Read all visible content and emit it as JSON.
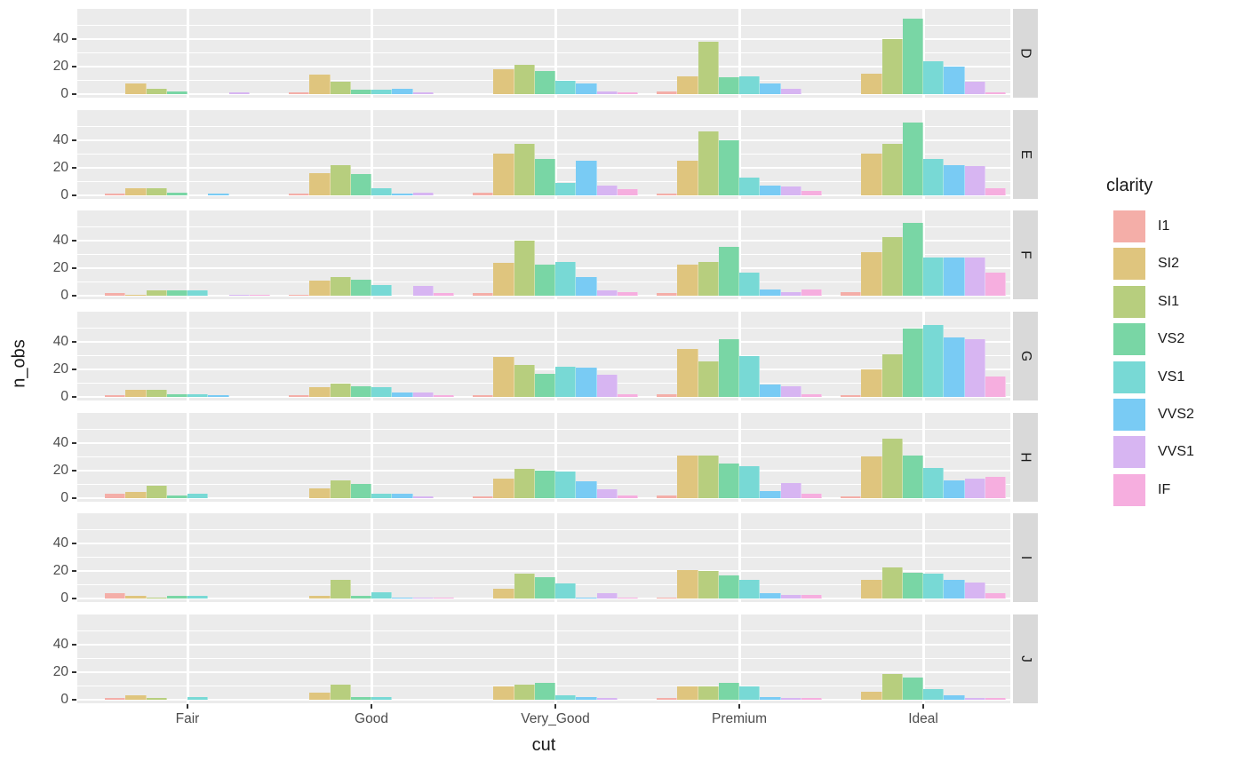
{
  "chart_data": {
    "type": "bar",
    "subtype": "dodged-faceted",
    "title": "",
    "xlabel": "cut",
    "ylabel": "n_obs",
    "facet_variable_values": [
      "D",
      "E",
      "F",
      "G",
      "H",
      "I",
      "J"
    ],
    "categories": [
      "Fair",
      "Good",
      "Very_Good",
      "Premium",
      "Ideal"
    ],
    "y_tick_labels": [
      "0",
      "20",
      "40"
    ],
    "y_major_ticks": [
      0,
      20,
      40
    ],
    "y_minor_ticks": [
      10,
      30,
      50
    ],
    "ylim": [
      0,
      62
    ],
    "grid": "on",
    "legend": {
      "title": "clarity",
      "position": "right",
      "entries": [
        {
          "label": "I1",
          "color": "#F4AEA8"
        },
        {
          "label": "SI2",
          "color": "#DFC57E"
        },
        {
          "label": "SI1",
          "color": "#B7CE7E"
        },
        {
          "label": "VS2",
          "color": "#79D6A5"
        },
        {
          "label": "VS1",
          "color": "#78D9D5"
        },
        {
          "label": "VVS2",
          "color": "#79CBF4"
        },
        {
          "label": "VVS1",
          "color": "#D7B5F2"
        },
        {
          "label": "IF",
          "color": "#F6AEDF"
        }
      ]
    },
    "series_order": [
      "I1",
      "SI2",
      "SI1",
      "VS2",
      "VS1",
      "VVS2",
      "VVS1",
      "IF"
    ],
    "values": {
      "D": {
        "Fair": [
          0,
          8,
          4,
          2,
          0,
          0,
          1,
          0
        ],
        "Good": [
          1,
          14,
          9,
          3,
          3,
          4,
          1,
          0
        ],
        "Very_Good": [
          0,
          18,
          21,
          17,
          10,
          8,
          2,
          1
        ],
        "Premium": [
          2,
          13,
          38,
          12,
          13,
          8,
          4,
          0
        ],
        "Ideal": [
          0,
          15,
          40,
          55,
          24,
          20,
          9,
          1
        ]
      },
      "E": {
        "Fair": [
          1,
          5,
          5,
          2,
          0,
          1,
          0,
          0
        ],
        "Good": [
          1,
          16,
          22,
          15,
          5,
          1,
          2,
          0
        ],
        "Very_Good": [
          2,
          30,
          37,
          26,
          9,
          25,
          7,
          4
        ],
        "Premium": [
          1,
          25,
          46,
          40,
          13,
          7,
          6,
          3
        ],
        "Ideal": [
          0,
          30,
          37,
          53,
          26,
          22,
          21,
          5
        ]
      },
      "F": {
        "Fair": [
          2,
          1,
          4,
          4,
          4,
          0,
          1,
          1
        ],
        "Good": [
          1,
          11,
          14,
          12,
          8,
          0,
          7,
          2
        ],
        "Very_Good": [
          2,
          24,
          40,
          23,
          25,
          14,
          4,
          3
        ],
        "Premium": [
          2,
          23,
          25,
          36,
          17,
          5,
          3,
          5
        ],
        "Ideal": [
          3,
          32,
          43,
          53,
          28,
          28,
          28,
          17
        ]
      },
      "G": {
        "Fair": [
          1,
          5,
          5,
          2,
          2,
          1,
          0,
          0
        ],
        "Good": [
          1,
          7,
          10,
          8,
          7,
          3,
          3,
          1
        ],
        "Very_Good": [
          1,
          29,
          23,
          17,
          22,
          21,
          16,
          2
        ],
        "Premium": [
          2,
          35,
          26,
          42,
          30,
          9,
          8,
          2
        ],
        "Ideal": [
          1,
          20,
          31,
          50,
          52,
          43,
          42,
          15
        ]
      },
      "H": {
        "Fair": [
          3,
          4,
          9,
          2,
          3,
          0,
          0,
          0
        ],
        "Good": [
          0,
          7,
          13,
          10,
          3,
          3,
          1,
          0
        ],
        "Very_Good": [
          1,
          14,
          21,
          20,
          19,
          12,
          6,
          2
        ],
        "Premium": [
          2,
          31,
          31,
          25,
          23,
          5,
          11,
          3
        ],
        "Ideal": [
          1,
          30,
          43,
          31,
          22,
          13,
          14,
          15
        ]
      },
      "I": {
        "Fair": [
          4,
          2,
          1,
          2,
          2,
          0,
          0,
          0
        ],
        "Good": [
          0,
          2,
          14,
          2,
          5,
          1,
          1,
          1
        ],
        "Very_Good": [
          0,
          7,
          18,
          16,
          11,
          1,
          4,
          1
        ],
        "Premium": [
          1,
          21,
          20,
          17,
          14,
          4,
          3,
          3
        ],
        "Ideal": [
          0,
          14,
          23,
          19,
          18,
          14,
          12,
          4
        ]
      },
      "J": {
        "Fair": [
          1,
          3,
          1,
          0,
          2,
          0,
          0,
          0
        ],
        "Good": [
          0,
          5,
          11,
          2,
          2,
          0,
          0,
          0
        ],
        "Very_Good": [
          0,
          10,
          11,
          12,
          3,
          2,
          1,
          0
        ],
        "Premium": [
          1,
          10,
          10,
          12,
          10,
          2,
          1,
          1
        ],
        "Ideal": [
          0,
          6,
          19,
          16,
          8,
          3,
          1,
          1
        ]
      }
    },
    "colors": {
      "panel_background": "#EBEBEB",
      "strip_background": "#D9D9D9",
      "gridline": "#FFFFFF",
      "tick": "#333333",
      "tick_label": "#4D4D4D",
      "axis_title": "#1a1a1a"
    }
  }
}
